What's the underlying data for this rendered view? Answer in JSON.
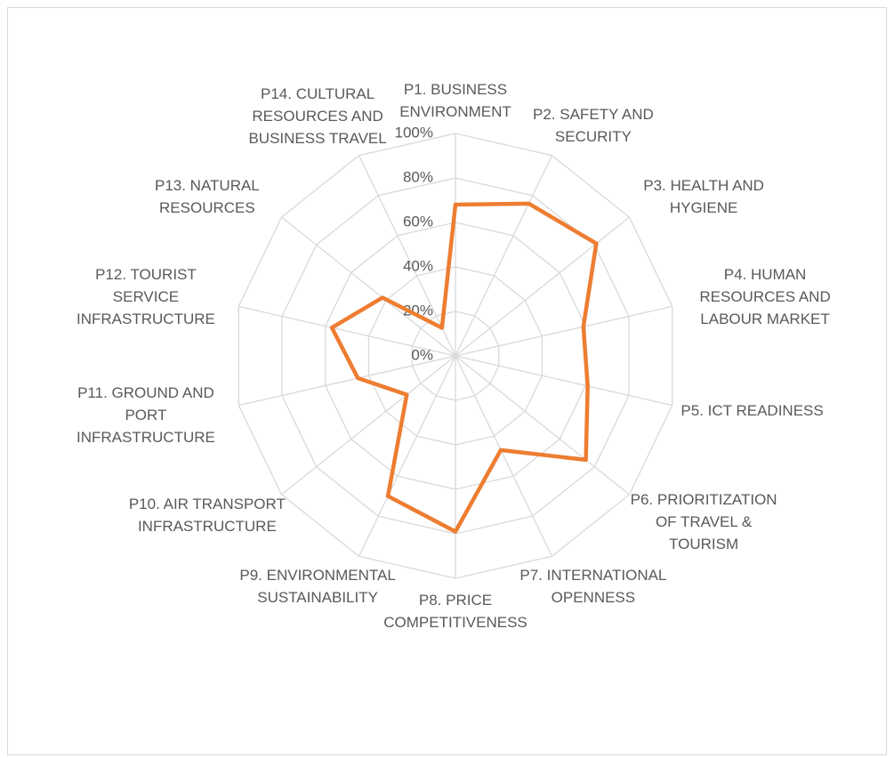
{
  "chart_data": {
    "type": "radar",
    "categories": [
      "P1. BUSINESS ENVIRONMENT",
      "P2. SAFETY AND SECURITY",
      "P3. HEALTH AND HYGIENE",
      "P4. HUMAN RESOURCES AND LABOUR MARKET",
      "P5. ICT READINESS",
      "P6. PRIORITIZATION OF TRAVEL & TOURISM",
      "P7. INTERNATIONAL OPENNESS",
      "P8. PRICE COMPETITIVENESS",
      "P9. ENVIRONMENTAL SUSTAINABILITY",
      "P10. AIR TRANSPORT INFRASTRUCTURE",
      "P11. GROUND AND PORT INFRASTRUCTURE",
      "P12. TOURIST SERVICE INFRASTRUCTURE",
      "P13. NATURAL RESOURCES",
      "P14. CULTURAL RESOURCES AND BUSINESS TRAVEL"
    ],
    "values": [
      68,
      76,
      81,
      59,
      61,
      75,
      47,
      79,
      70,
      28,
      45,
      57,
      42,
      14
    ],
    "color": "#ed7d31",
    "ylim": [
      0,
      100
    ],
    "yticks": [
      {
        "value": 0,
        "label": "0%"
      },
      {
        "value": 20,
        "label": "20%"
      },
      {
        "value": 40,
        "label": "40%"
      },
      {
        "value": 60,
        "label": "60%"
      },
      {
        "value": 80,
        "label": "80%"
      },
      {
        "value": 100,
        "label": "100%"
      }
    ],
    "grid": true
  }
}
